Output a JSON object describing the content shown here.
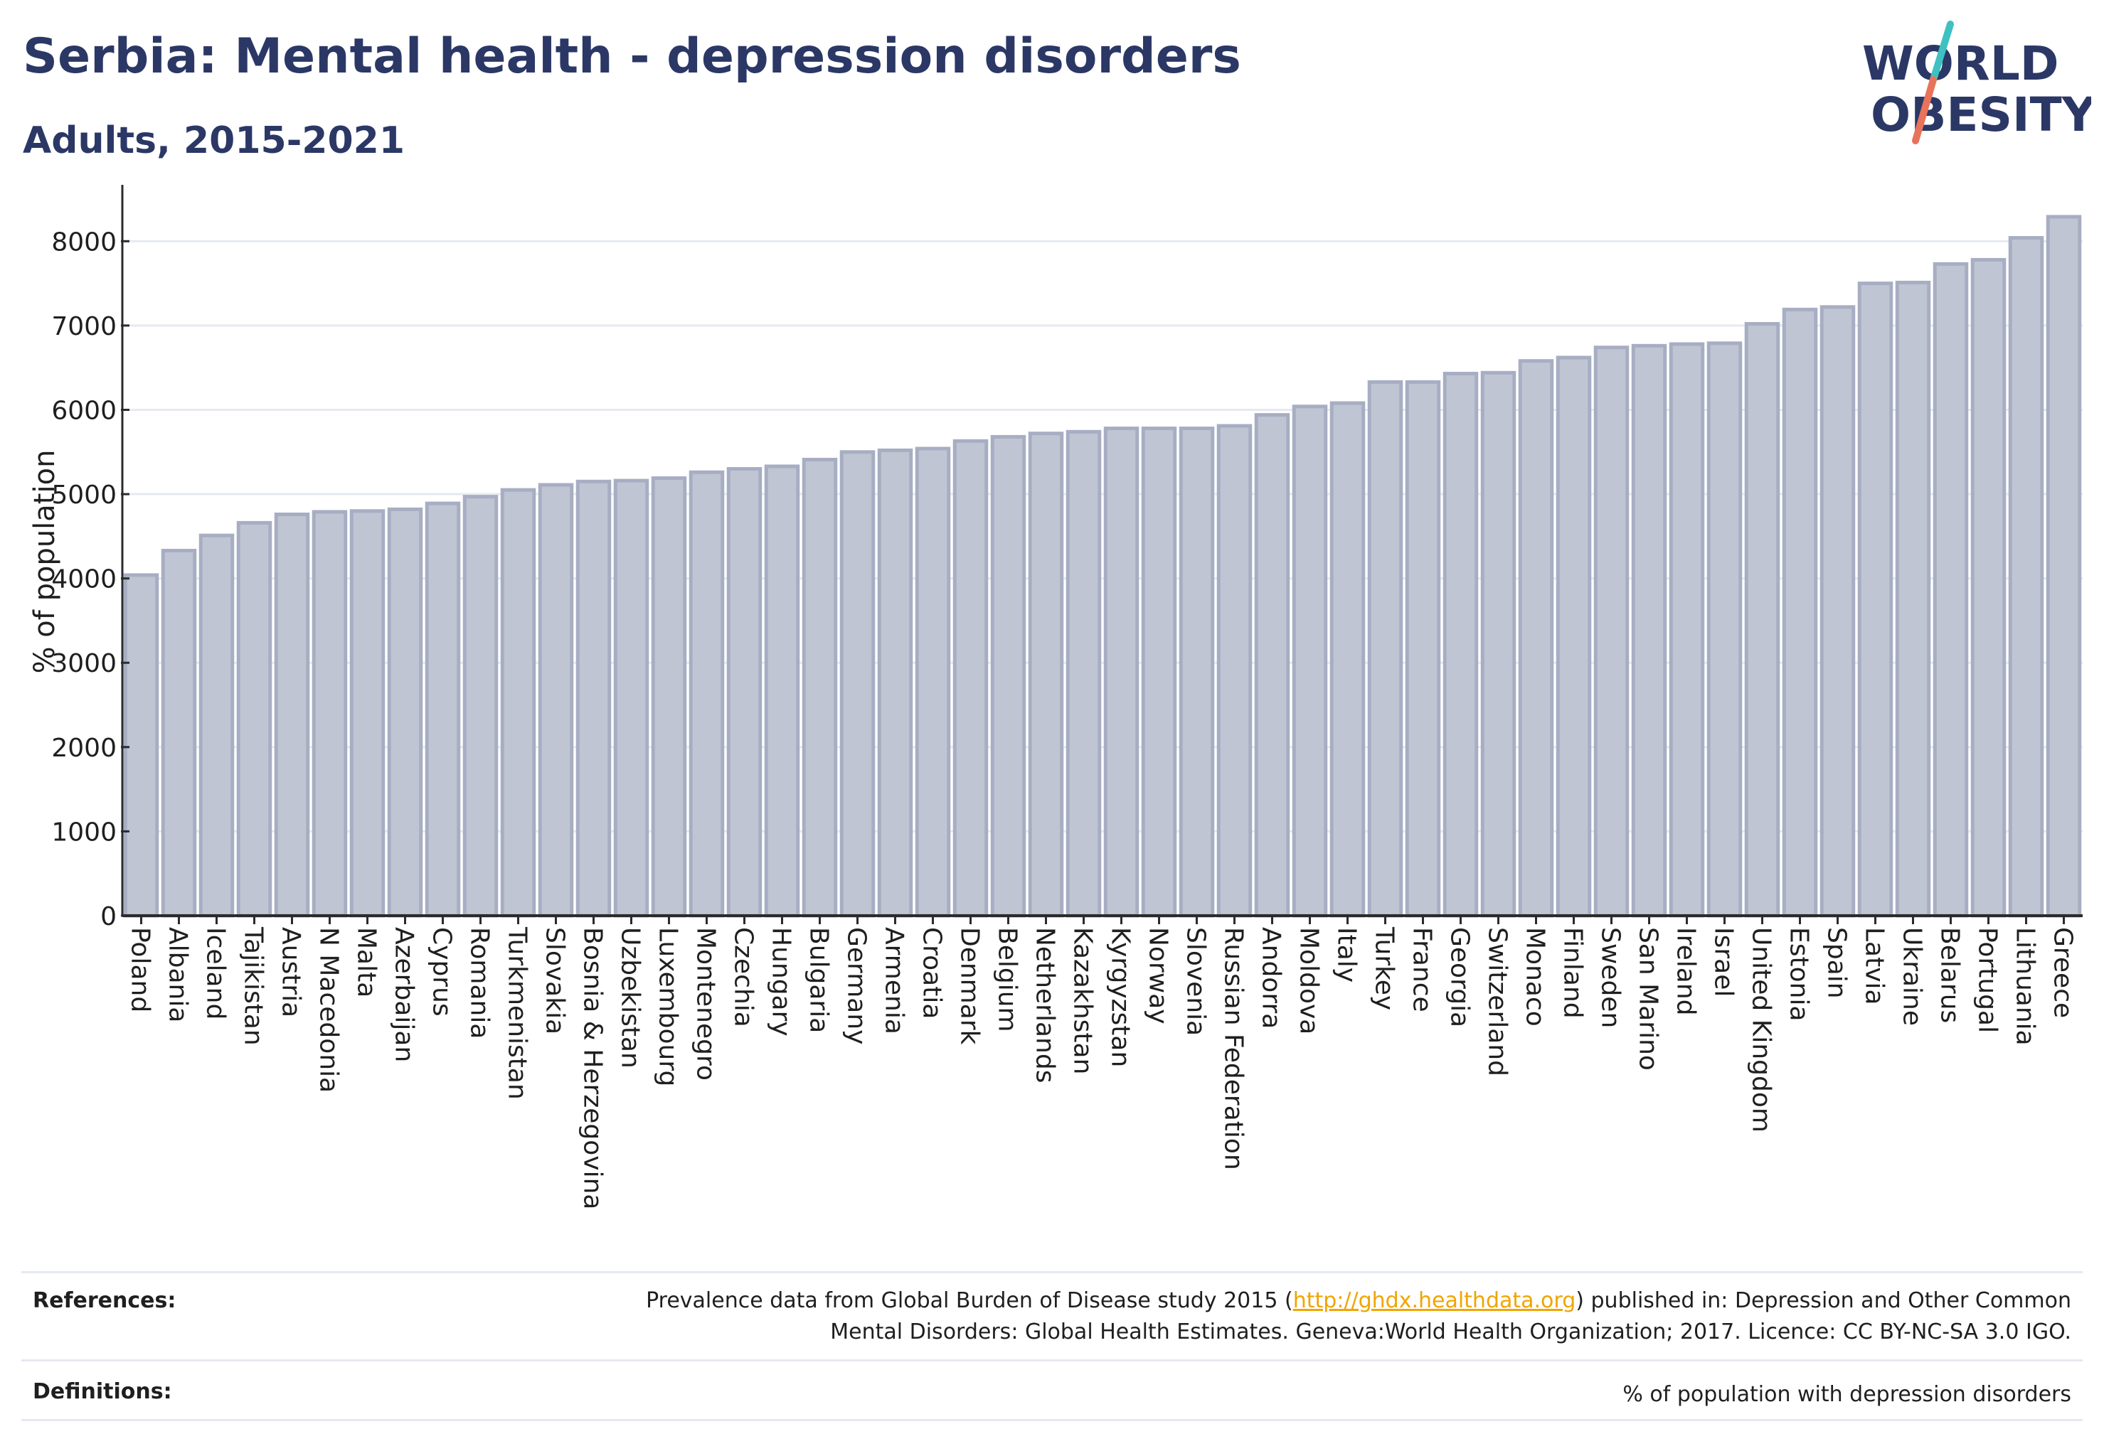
{
  "header": {
    "title": "Serbia: Mental health - depression disorders",
    "subtitle": "Adults, 2015-2021"
  },
  "logo": {
    "line1": "WORLD",
    "line2": "OBESITY",
    "colors": {
      "text": "#2b3866",
      "slash_red": "#e8735a",
      "slash_teal": "#3ec1c0"
    }
  },
  "colors": {
    "bar_fill": "#c0c5d3",
    "bar_stroke": "#a7aec3",
    "axis": "#2b2b2b",
    "grid": "#e6e9f2",
    "link": "#f0a500"
  },
  "chart_data": {
    "type": "bar",
    "ylabel": "% of population",
    "ylim": [
      0,
      8500
    ],
    "yticks": [
      0,
      1000,
      2000,
      3000,
      4000,
      5000,
      6000,
      7000,
      8000
    ],
    "grid": true,
    "categories": [
      "Poland",
      "Albania",
      "Iceland",
      "Tajikistan",
      "Austria",
      "N Macedonia",
      "Malta",
      "Azerbaijan",
      "Cyprus",
      "Romania",
      "Turkmenistan",
      "Slovakia",
      "Bosnia & Herzegovina",
      "Uzbekistan",
      "Luxembourg",
      "Montenegro",
      "Czechia",
      "Hungary",
      "Bulgaria",
      "Germany",
      "Armenia",
      "Croatia",
      "Denmark",
      "Belgium",
      "Netherlands",
      "Kazakhstan",
      "Kyrgyzstan",
      "Norway",
      "Slovenia",
      "Russian Federation",
      "Andorra",
      "Moldova",
      "Italy",
      "Turkey",
      "France",
      "Georgia",
      "Switzerland",
      "Monaco",
      "Finland",
      "Sweden",
      "San Marino",
      "Ireland",
      "Israel",
      "United Kingdom",
      "Estonia",
      "Spain",
      "Latvia",
      "Ukraine",
      "Belarus",
      "Portugal",
      "Lithuania",
      "Greece"
    ],
    "values": [
      4040,
      4330,
      4510,
      4660,
      4760,
      4790,
      4800,
      4820,
      4890,
      4970,
      5050,
      5110,
      5150,
      5160,
      5190,
      5260,
      5300,
      5330,
      5410,
      5500,
      5520,
      5540,
      5630,
      5680,
      5720,
      5740,
      5780,
      5780,
      5780,
      5810,
      5940,
      6040,
      6080,
      6330,
      6330,
      6430,
      6440,
      6580,
      6620,
      6740,
      6760,
      6780,
      6790,
      7020,
      7190,
      7220,
      7500,
      7510,
      7730,
      7780,
      8040,
      8290
    ]
  },
  "references": {
    "label": "References:",
    "text_before_link": "Prevalence data from Global Burden of Disease study 2015 (",
    "link": "http://ghdx.healthdata.org",
    "text_after_link": ") published in: Depression and Other Common",
    "line2": "Mental Disorders: Global Health Estimates. Geneva:World Health Organization; 2017. Licence: CC BY-NC-SA 3.0 IGO."
  },
  "definitions": {
    "label": "Definitions:",
    "text": "% of population with depression disorders"
  }
}
